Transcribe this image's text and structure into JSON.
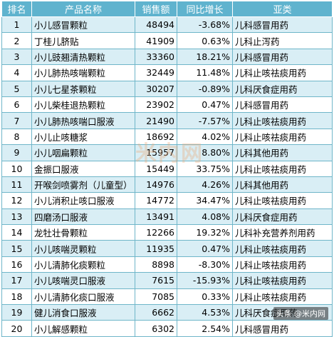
{
  "table": {
    "headers": {
      "rank": "排名",
      "name": "产品名称",
      "sales": "销售额",
      "yoy": "同比增长",
      "category": "亚类"
    },
    "rows": [
      {
        "rank": "1",
        "name": "小儿感冒颗粒",
        "sales": "48494",
        "yoy": "-3.68%",
        "category": "儿科感冒用药"
      },
      {
        "rank": "2",
        "name": "丁桂儿脐贴",
        "sales": "41909",
        "yoy": "0.63%",
        "category": "儿科止泻药"
      },
      {
        "rank": "3",
        "name": "小儿豉翘清热颗粒",
        "sales": "33360",
        "yoy": "18.21%",
        "category": "儿科感冒用药"
      },
      {
        "rank": "4",
        "name": "小儿肺热咳喘颗粒",
        "sales": "32449",
        "yoy": "11.48%",
        "category": "儿科止咳祛痰用药"
      },
      {
        "rank": "5",
        "name": "小儿七星茶颗粒",
        "sales": "30207",
        "yoy": "-0.89%",
        "category": "儿科厌食症用药"
      },
      {
        "rank": "6",
        "name": "小儿柴桂退热颗粒",
        "sales": "23902",
        "yoy": "0.47%",
        "category": "儿科感冒用药"
      },
      {
        "rank": "7",
        "name": "小儿肺热咳喘口服液",
        "sales": "21490",
        "yoy": "-7.57%",
        "category": "儿科止咳祛痰用药"
      },
      {
        "rank": "8",
        "name": "小儿止咳糖浆",
        "sales": "18692",
        "yoy": "4.02%",
        "category": "儿科止咳祛痰用药"
      },
      {
        "rank": "9",
        "name": "小儿咽扁颗粒",
        "sales": "15957",
        "yoy": "8.80%",
        "category": "儿科其他用药"
      },
      {
        "rank": "10",
        "name": "金振口服液",
        "sales": "15449",
        "yoy": "33.75%",
        "category": "儿科止咳祛痰用药"
      },
      {
        "rank": "11",
        "name": "开喉剑喷雾剂（儿童型）",
        "sales": "14976",
        "yoy": "4.26%",
        "category": "儿科其他用药"
      },
      {
        "rank": "12",
        "name": "小儿消积止咳口服液",
        "sales": "14772",
        "yoy": "34.47%",
        "category": "儿科止咳祛痰用药"
      },
      {
        "rank": "13",
        "name": "四磨汤口服液",
        "sales": "13491",
        "yoy": "4.08%",
        "category": "儿科厌食症用药"
      },
      {
        "rank": "14",
        "name": "龙牡壮骨颗粒",
        "sales": "12266",
        "yoy": "19.32%",
        "category": "儿科补充营养剂用药"
      },
      {
        "rank": "15",
        "name": "小儿咳喘灵颗粒",
        "sales": "11935",
        "yoy": "0.47%",
        "category": "儿科止咳祛痰用药"
      },
      {
        "rank": "16",
        "name": "小儿清肺化痰颗粒",
        "sales": "8898",
        "yoy": "-8.30%",
        "category": "儿科止咳祛痰用药"
      },
      {
        "rank": "17",
        "name": "小儿咳喘灵口服液",
        "sales": "7615",
        "yoy": "-15.93%",
        "category": "儿科止咳祛痰用药"
      },
      {
        "rank": "18",
        "name": "小儿清肺化痰口服液",
        "sales": "7085",
        "yoy": "0.33%",
        "category": "儿科止咳祛痰用药"
      },
      {
        "rank": "19",
        "name": "健儿消食口服液",
        "sales": "6662",
        "yoy": "4.53%",
        "category": "儿科厌食症用药"
      },
      {
        "rank": "20",
        "name": "小儿解感颗粒",
        "sales": "6302",
        "yoy": "2.54%",
        "category": "儿科感冒用药"
      }
    ]
  },
  "watermark": "米内网",
  "credit": "头条 @米内网",
  "colors": {
    "header_bg": "#5fb3ce",
    "row_odd_bg": "#d9eef5",
    "row_even_bg": "#ffffff",
    "border": "#6fb6c9"
  }
}
